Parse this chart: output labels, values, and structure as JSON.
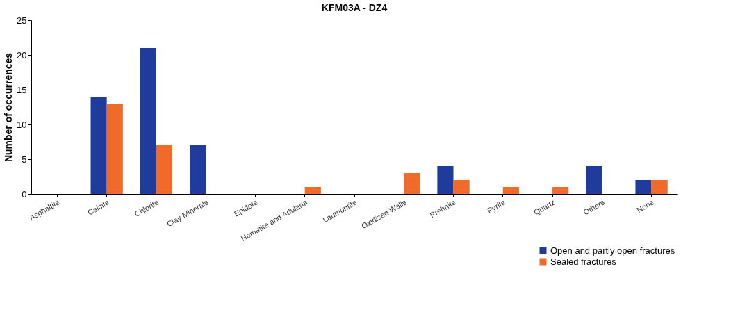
{
  "chart_data": {
    "type": "bar",
    "title": "KFM03A - DZ4",
    "ylabel": "Number of occurrences",
    "categories": [
      "Asphaltite",
      "Calcite",
      "Chlorite",
      "Clay Minerals",
      "Epidote",
      "Hematite and Adularia",
      "Laumontite",
      "Oxidized Walls",
      "Prehnite",
      "Pyrite",
      "Quartz",
      "Others",
      "None"
    ],
    "series": [
      {
        "name": "Open and partly open fractures",
        "color": "#1f3c9c",
        "values": [
          0,
          14,
          21,
          7,
          0,
          0,
          0,
          0,
          4,
          0,
          0,
          4,
          2
        ]
      },
      {
        "name": "Sealed fractures",
        "color": "#f06a2a",
        "values": [
          0,
          13,
          7,
          0,
          0,
          1,
          0,
          3,
          2,
          1,
          1,
          0,
          2
        ]
      }
    ],
    "ylim": [
      0,
      25
    ],
    "yticks": [
      0,
      5,
      10,
      15,
      20,
      25
    ],
    "grid": false,
    "legend": "bottom right"
  }
}
